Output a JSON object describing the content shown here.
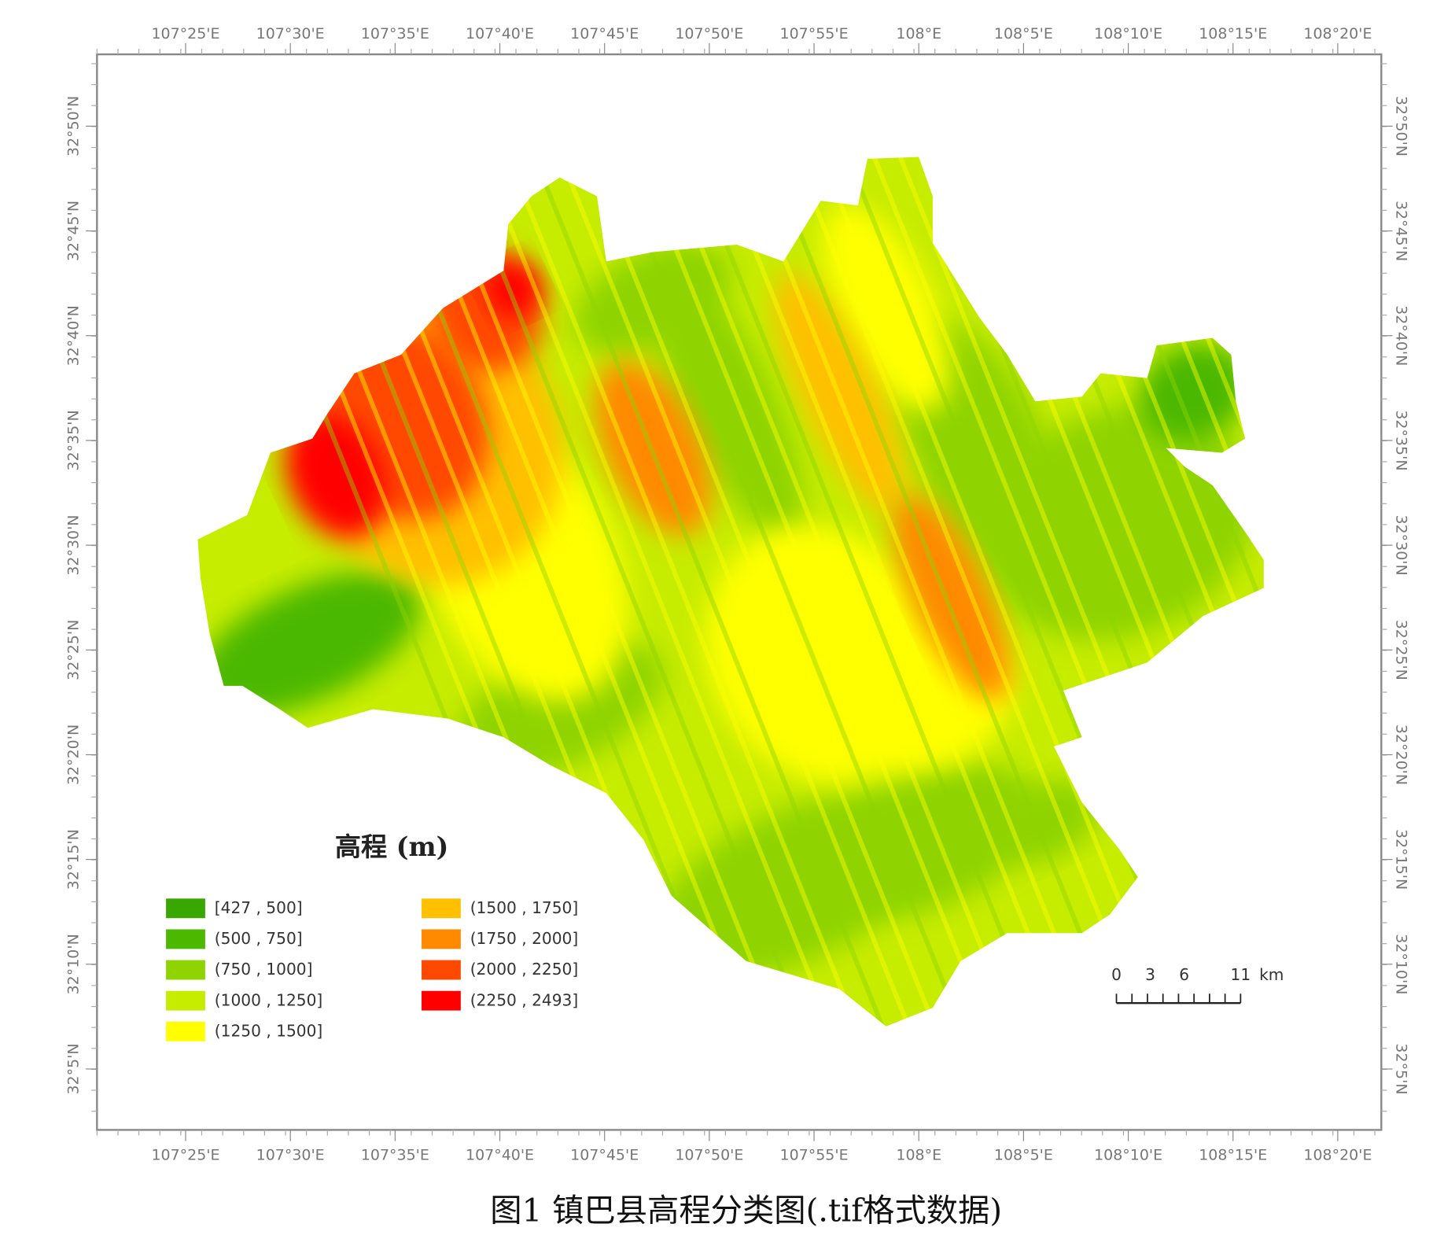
{
  "map": {
    "longitude_labels": [
      "107°25'E",
      "107°30'E",
      "107°35'E",
      "107°40'E",
      "107°45'E",
      "107°50'E",
      "107°55'E",
      "108°E",
      "108°5'E",
      "108°10'E",
      "108°15'E",
      "108°20'E"
    ],
    "latitude_labels": [
      "32°50'N",
      "32°45'N",
      "32°40'N",
      "32°35'N",
      "32°30'N",
      "32°25'N",
      "32°20'N",
      "32°15'N",
      "32°10'N",
      "32°5'N"
    ],
    "legend": {
      "title": "高程 (m)",
      "items": [
        {
          "label": "[427 , 500]",
          "color": "#38a800"
        },
        {
          "label": "(500 , 750]",
          "color": "#4cb800"
        },
        {
          "label": "(750 , 1000]",
          "color": "#8fd400"
        },
        {
          "label": "(1000 , 1250]",
          "color": "#c6ec00"
        },
        {
          "label": "(1250 , 1500]",
          "color": "#ffff00"
        },
        {
          "label": "(1500 , 1750]",
          "color": "#ffc000"
        },
        {
          "label": "(1750 , 2000]",
          "color": "#ff8a00"
        },
        {
          "label": "(2000 , 2250]",
          "color": "#ff4800"
        },
        {
          "label": "(2250 , 2493]",
          "color": "#ff0000"
        }
      ]
    },
    "scale_bar": {
      "ticks": [
        0,
        3,
        6,
        11
      ],
      "unit": "km"
    },
    "caption": "图1 镇巴县高程分类图(.tif格式数据)"
  }
}
